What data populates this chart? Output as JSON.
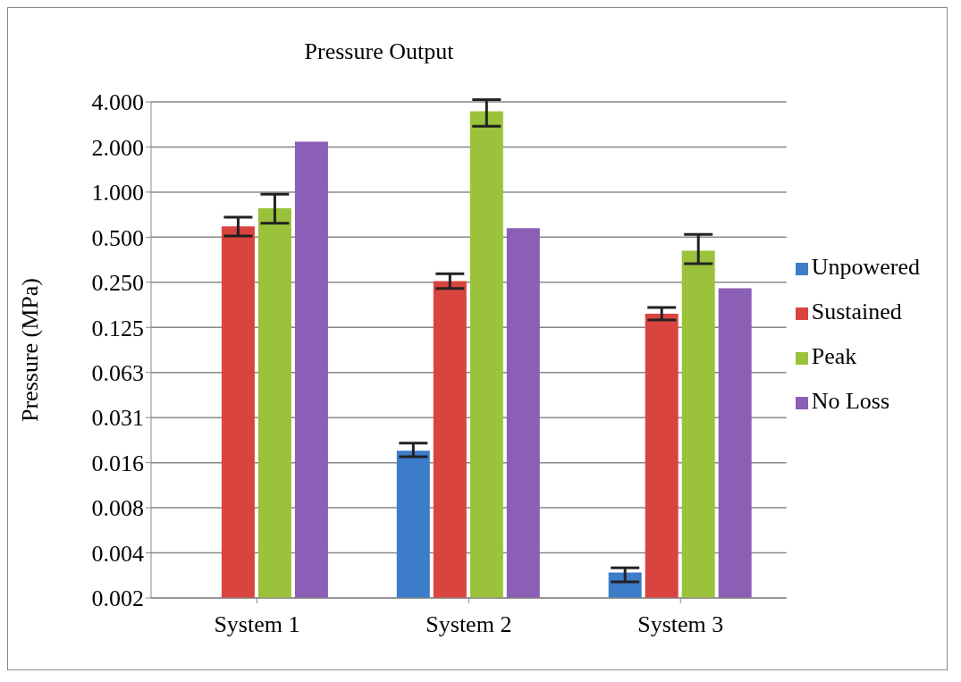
{
  "chart_data": {
    "type": "bar",
    "title": "Pressure Output",
    "ylabel": "Pressure (MPa)",
    "categories": [
      "System 1",
      "System 2",
      "System 3"
    ],
    "series": [
      {
        "name": "Unpowered",
        "color": "#3d7cc9",
        "values": [
          null,
          0.0188,
          0.00289
        ],
        "errors": [
          null,
          [
            0.0171,
            0.0211
          ],
          [
            0.0025,
            0.0031
          ]
        ]
      },
      {
        "name": "Sustained",
        "color": "#d9443f",
        "values": [
          0.59,
          0.255,
          0.154
        ],
        "errors": [
          [
            0.51,
            0.68
          ],
          [
            0.227,
            0.285
          ],
          [
            0.14,
            0.17
          ]
        ]
      },
      {
        "name": "Peak",
        "color": "#9bc23b",
        "values": [
          0.78,
          3.46,
          0.406
        ],
        "errors": [
          [
            0.62,
            0.97
          ],
          [
            2.75,
            4.14
          ],
          [
            0.333,
            0.521
          ]
        ]
      },
      {
        "name": "No Loss",
        "color": "#8b5fb5",
        "values": [
          2.17,
          0.574,
          0.228
        ]
      }
    ],
    "log": true,
    "ylim": [
      0.001953125,
      4
    ],
    "yticks": [
      {
        "value": 0.001953125,
        "label": "0.002"
      },
      {
        "value": 0.00390625,
        "label": "0.004"
      },
      {
        "value": 0.0078125,
        "label": "0.008"
      },
      {
        "value": 0.015625,
        "label": "0.016"
      },
      {
        "value": 0.03125,
        "label": "0.031"
      },
      {
        "value": 0.0625,
        "label": "0.063"
      },
      {
        "value": 0.125,
        "label": "0.125"
      },
      {
        "value": 0.25,
        "label": "0.250"
      },
      {
        "value": 0.5,
        "label": "0.500"
      },
      {
        "value": 1,
        "label": "1.000"
      },
      {
        "value": 2,
        "label": "2.000"
      },
      {
        "value": 4,
        "label": "4.000"
      }
    ],
    "grid": "y",
    "legend": "right"
  }
}
